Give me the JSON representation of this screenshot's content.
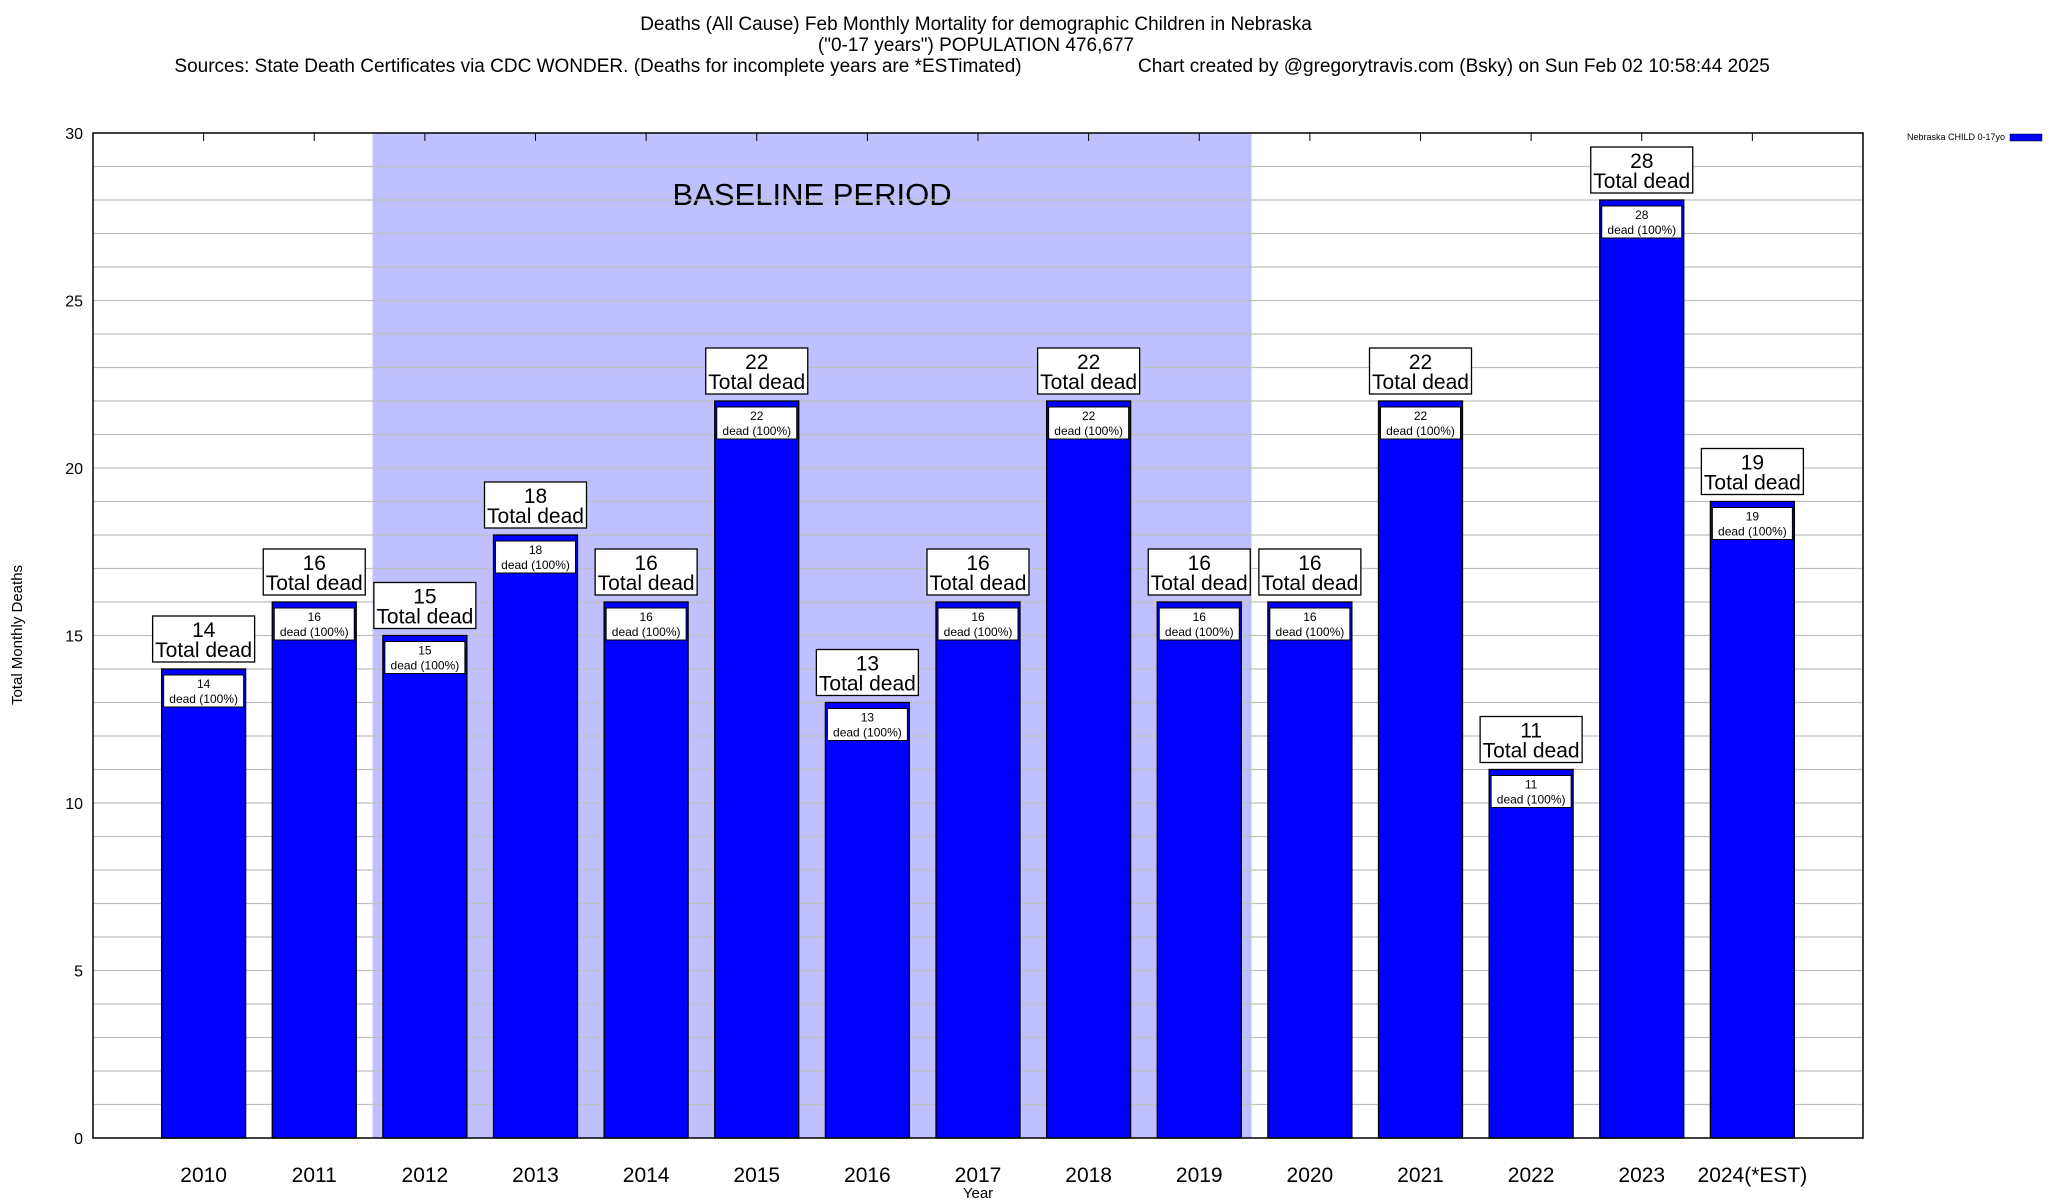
{
  "chart_data": {
    "type": "bar",
    "title": "Deaths (All Cause) Feb Monthly Mortality for demographic Children in Nebraska",
    "subtitle": "(\"0-17 years\") POPULATION 476,677",
    "sources": "Sources: State Death Certificates via CDC WONDER. (Deaths for incomplete years are *ESTimated)",
    "credit": "Chart created by @gregorytravis.com (Bsky) on Sun Feb 02 10:58:44 2025",
    "xlabel": "Year",
    "ylabel": "Total Monthly Deaths",
    "ylim": [
      0,
      30
    ],
    "yticks": [
      0,
      5,
      10,
      15,
      20,
      25,
      30
    ],
    "grid": true,
    "legend": {
      "position": "top-right",
      "label": "Nebraska CHILD 0-17yo"
    },
    "categories": [
      "2010",
      "2011",
      "2012",
      "2013",
      "2014",
      "2015",
      "2016",
      "2017",
      "2018",
      "2019",
      "2020",
      "2021",
      "2022",
      "2023",
      "2024(*EST)"
    ],
    "series": [
      {
        "name": "Nebraska CHILD 0-17yo",
        "values": [
          14,
          16,
          15,
          18,
          16,
          22,
          13,
          16,
          22,
          16,
          16,
          22,
          11,
          28,
          19
        ]
      }
    ],
    "total_label": "Total dead",
    "inner_label": "dead (100%)",
    "annotation": {
      "text": "BASELINE PERIOD",
      "range": [
        "2012",
        "2019"
      ]
    },
    "colors": {
      "bar": "#0000ff",
      "baseline": "#c0c0ff",
      "grid": "#c0c0c0"
    }
  }
}
